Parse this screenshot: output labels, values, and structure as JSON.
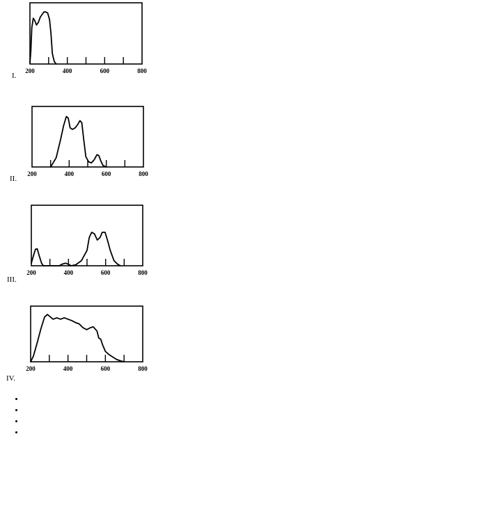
{
  "chart_data": [
    {
      "type": "line",
      "label": "I.",
      "xlim": [
        200,
        800
      ],
      "xticks": [
        "200",
        "400",
        "600",
        "800"
      ],
      "minor_ticks": [
        300,
        400,
        500,
        600,
        700
      ],
      "x": [
        200,
        205,
        210,
        218,
        225,
        235,
        245,
        255,
        265,
        275,
        285,
        295,
        305,
        312,
        320,
        330,
        340
      ],
      "y": [
        0.02,
        0.25,
        0.7,
        0.88,
        0.84,
        0.75,
        0.8,
        0.9,
        0.95,
        1.0,
        1.0,
        0.98,
        0.85,
        0.6,
        0.2,
        0.05,
        0.0
      ]
    },
    {
      "type": "line",
      "label": "II.",
      "xlim": [
        200,
        800
      ],
      "xticks": [
        "200",
        "400",
        "600",
        "800"
      ],
      "minor_ticks": [
        300,
        400,
        500,
        600,
        700
      ],
      "x": [
        300,
        330,
        355,
        370,
        385,
        395,
        405,
        418,
        432,
        445,
        458,
        468,
        478,
        490,
        505,
        520,
        535,
        550,
        560,
        570,
        582,
        600
      ],
      "y": [
        0.0,
        0.18,
        0.55,
        0.8,
        0.98,
        0.95,
        0.76,
        0.73,
        0.76,
        0.82,
        0.9,
        0.86,
        0.55,
        0.2,
        0.1,
        0.08,
        0.14,
        0.24,
        0.22,
        0.12,
        0.03,
        0.0
      ]
    },
    {
      "type": "line",
      "label": "III.",
      "xlim": [
        200,
        800
      ],
      "xticks": [
        "200",
        "400",
        "600",
        "800"
      ],
      "minor_ticks": [
        300,
        400,
        500,
        600,
        700
      ],
      "x": [
        200,
        210,
        222,
        232,
        242,
        255,
        265,
        272,
        300,
        350,
        365,
        385,
        400,
        415,
        440,
        470,
        500,
        512,
        525,
        540,
        555,
        570,
        582,
        597,
        610,
        625,
        645,
        665,
        680
      ],
      "y": [
        0.05,
        0.18,
        0.32,
        0.33,
        0.2,
        0.05,
        0.0,
        0.0,
        0.0,
        0.0,
        0.03,
        0.05,
        0.03,
        0.0,
        0.02,
        0.1,
        0.3,
        0.55,
        0.65,
        0.62,
        0.5,
        0.55,
        0.65,
        0.65,
        0.5,
        0.3,
        0.1,
        0.03,
        0.0
      ]
    },
    {
      "type": "line",
      "label": "IV.",
      "xlim": [
        200,
        800
      ],
      "xticks": [
        "200",
        "400",
        "600",
        "800"
      ],
      "minor_ticks": [
        300,
        400,
        500,
        600,
        700
      ],
      "x": [
        200,
        215,
        235,
        255,
        275,
        290,
        305,
        320,
        340,
        360,
        380,
        400,
        420,
        440,
        460,
        480,
        500,
        520,
        535,
        555,
        565,
        575,
        585,
        600,
        620,
        640,
        660,
        680,
        700
      ],
      "y": [
        0.0,
        0.12,
        0.4,
        0.7,
        0.95,
        1.0,
        0.95,
        0.9,
        0.93,
        0.9,
        0.93,
        0.9,
        0.87,
        0.83,
        0.8,
        0.72,
        0.68,
        0.72,
        0.74,
        0.65,
        0.5,
        0.48,
        0.36,
        0.22,
        0.15,
        0.1,
        0.05,
        0.02,
        0.0
      ]
    }
  ],
  "bullets": [
    "",
    "",
    "",
    ""
  ]
}
